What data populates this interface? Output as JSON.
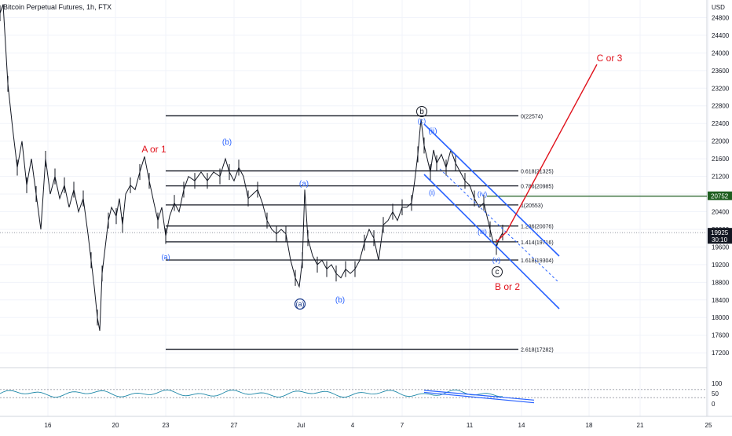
{
  "header": {
    "symbol": "Bitcoin Perpetual Futures, 1h, FTX"
  },
  "chart_data": {
    "type": "line",
    "currency": "USD",
    "y_ticks": [
      17200,
      17600,
      18000,
      18400,
      18800,
      19200,
      19600,
      20000,
      20400,
      20800,
      21200,
      21600,
      22000,
      22400,
      22800,
      23200,
      23600,
      24000,
      24400,
      24800
    ],
    "y_tick_labels": [
      "17200",
      "17600",
      "18000",
      "18400",
      "18800",
      "19200",
      "19600",
      "20000",
      "20400",
      "20800",
      "21200",
      "21600",
      "22000",
      "22400",
      "22800",
      "23200",
      "23600",
      "24000",
      "24400",
      "24800"
    ],
    "ylim": [
      16900,
      25200
    ],
    "x_ticks": [
      "16",
      "20",
      "23",
      "27",
      "Jul",
      "4",
      "7",
      "11",
      "14",
      "18",
      "21",
      "25"
    ],
    "price_badges": [
      {
        "label": "20752",
        "value": 20752,
        "color": "#1e5e20"
      },
      {
        "label": "19925",
        "value": 19925,
        "color": "#131722",
        "sub": "30:10"
      }
    ],
    "fib_levels": [
      {
        "ratio": "0",
        "label": "0(22574)",
        "value": 22574
      },
      {
        "ratio": "0.618",
        "label": "0.618(21325)",
        "value": 21325
      },
      {
        "ratio": "0.786",
        "label": "0.786(20985)",
        "value": 20985
      },
      {
        "ratio": "1",
        "label": "1(20553)",
        "value": 20553
      },
      {
        "ratio": "1.236",
        "label": "1.236(20076)",
        "value": 20076
      },
      {
        "ratio": "1.414",
        "label": "1.414(19716)",
        "value": 19716
      },
      {
        "ratio": "1.618",
        "label": "1.618(19304)",
        "value": 19304
      },
      {
        "ratio": "2.618",
        "label": "2.618(17282)",
        "value": 17282
      }
    ],
    "price_series": {
      "x": [
        "Jun 13",
        "Jun 14",
        "Jun 15",
        "Jun 16",
        "Jun 17",
        "Jun 18",
        "Jun 19",
        "Jun 20",
        "Jun 21",
        "Jun 22",
        "Jun 23",
        "Jun 24",
        "Jun 25",
        "Jun 26",
        "Jun 27",
        "Jun 28",
        "Jun 29",
        "Jun 30",
        "Jul 1",
        "Jul 2",
        "Jul 3",
        "Jul 4",
        "Jul 5",
        "Jul 6",
        "Jul 7",
        "Jul 8",
        "Jul 9",
        "Jul 10",
        "Jul 11",
        "Jul 12"
      ],
      "y": [
        25100,
        22500,
        21300,
        20300,
        20700,
        19100,
        17700,
        20400,
        21200,
        20000,
        21200,
        21400,
        21500,
        21600,
        21000,
        20500,
        20000,
        19200,
        19500,
        19300,
        19200,
        19800,
        20400,
        20700,
        22500,
        21500,
        21200,
        20700,
        20100,
        19700
      ],
      "color": "#131722"
    },
    "wave_labels": [
      {
        "text": "A or 1",
        "color": "#e0121c"
      },
      {
        "text": "(b)",
        "color": "#2962ff"
      },
      {
        "text": "(a)",
        "color": "#2962ff"
      },
      {
        "text": "(a)",
        "color": "#2962ff"
      },
      {
        "text": "(a)",
        "color": "#1a3a8a"
      },
      {
        "text": "(b)",
        "color": "#2962ff"
      },
      {
        "text": "b",
        "color": "#131722"
      },
      {
        "text": "(c)",
        "color": "#2962ff"
      },
      {
        "text": "(ii)",
        "color": "#2962ff"
      },
      {
        "text": "(i)",
        "color": "#2962ff"
      },
      {
        "text": "(iv)",
        "color": "#2962ff"
      },
      {
        "text": "(iii)",
        "color": "#2962ff"
      },
      {
        "text": "(v)",
        "color": "#2962ff"
      },
      {
        "text": "c",
        "color": "#131722"
      },
      {
        "text": "B or 2",
        "color": "#e0121c"
      },
      {
        "text": "C or 3",
        "color": "#e0121c"
      }
    ],
    "oscillator": {
      "y_ticks": [
        "100",
        "50",
        "0"
      ],
      "ylim": [
        0,
        100
      ]
    },
    "colors": {
      "channel": "#2962ff",
      "projection": "#e0121c",
      "fib": "#131722",
      "grid": "#f0f3fa"
    },
    "grid": true,
    "legend": "none"
  }
}
